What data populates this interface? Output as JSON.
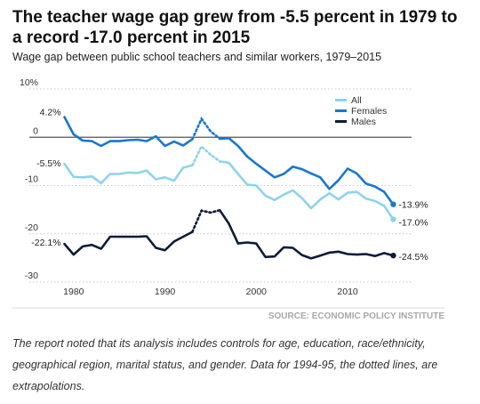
{
  "header": {
    "title": "The teacher wage gap grew from -5.5 percent in 1979 to a record -17.0 percent in 2015",
    "subtitle": "Wage gap between public school teachers and similar workers, 1979–2015"
  },
  "source": "SOURCE: ECONOMIC POLICY INSTITUTE",
  "caption": "The report noted that its analysis includes controls for age, education, race/ethnicity, geographical region, marital status, and gender. Data for 1994-95, the dotted lines, are extrapolations.",
  "chart_data": {
    "type": "line",
    "title": "",
    "xlabel": "",
    "ylabel": "",
    "xlim": [
      1977,
      2017
    ],
    "ylim": [
      -30,
      10
    ],
    "xticks": [
      1980,
      1990,
      2000,
      2010
    ],
    "yticks": [
      {
        "value": 10,
        "label": "10%"
      },
      {
        "value": 0,
        "label": "0"
      },
      {
        "value": -10,
        "label": "-10"
      },
      {
        "value": -20,
        "label": "-20"
      },
      {
        "value": -30,
        "label": "-30"
      }
    ],
    "grid": true,
    "zero_line": true,
    "legend_position": "top-right",
    "extrapolated_years": [
      1994,
      1995
    ],
    "x": [
      1979,
      1980,
      1981,
      1982,
      1983,
      1984,
      1985,
      1986,
      1987,
      1988,
      1989,
      1990,
      1991,
      1992,
      1993,
      1994,
      1995,
      1996,
      1997,
      1998,
      1999,
      2000,
      2001,
      2002,
      2003,
      2004,
      2005,
      2006,
      2007,
      2008,
      2009,
      2010,
      2011,
      2012,
      2013,
      2014,
      2015
    ],
    "series": [
      {
        "name": "All",
        "color": "#8dd3ee",
        "values": [
          -5.5,
          -8.2,
          -8.3,
          -8.1,
          -9.5,
          -7.6,
          -7.6,
          -7.3,
          -7.4,
          -6.9,
          -8.7,
          -8.3,
          -9.0,
          -6.3,
          -5.8,
          -1.9,
          -3.6,
          -5.0,
          -5.3,
          -7.6,
          -9.8,
          -10.0,
          -12.1,
          -13.0,
          -11.9,
          -11.0,
          -12.6,
          -14.7,
          -12.9,
          -11.6,
          -12.9,
          -11.5,
          -11.3,
          -12.7,
          -13.2,
          -14.2,
          -17.0
        ],
        "label_start": "-5.5%",
        "label_end": "-17.0%"
      },
      {
        "name": "Females",
        "color": "#1777d3",
        "values": [
          4.2,
          0.6,
          -0.7,
          -0.8,
          -1.8,
          -0.8,
          -0.8,
          -0.6,
          -0.5,
          -0.8,
          0.2,
          -1.8,
          -0.9,
          -1.7,
          -0.4,
          3.8,
          1.2,
          -0.3,
          -0.2,
          -1.8,
          -4.0,
          -5.5,
          -6.9,
          -8.3,
          -7.6,
          -6.1,
          -6.6,
          -7.5,
          -8.3,
          -10.7,
          -8.9,
          -6.5,
          -7.5,
          -9.6,
          -10.2,
          -11.3,
          -13.9
        ],
        "label_start": "4.2%",
        "label_end": "-13.9%"
      },
      {
        "name": "Males",
        "color": "#0e1c3a",
        "values": [
          -22.1,
          -24.3,
          -22.6,
          -22.3,
          -23.1,
          -20.6,
          -20.6,
          -20.6,
          -20.6,
          -20.5,
          -22.9,
          -23.4,
          -21.6,
          -20.6,
          -19.6,
          -15.2,
          -15.6,
          -15.1,
          -17.9,
          -22.0,
          -21.8,
          -22.0,
          -24.8,
          -24.7,
          -22.8,
          -22.9,
          -24.4,
          -25.1,
          -24.5,
          -23.9,
          -23.7,
          -24.2,
          -24.3,
          -24.2,
          -24.6,
          -24.0,
          -24.5
        ],
        "label_start": "-22.1%",
        "label_end": "-24.5%"
      }
    ]
  }
}
